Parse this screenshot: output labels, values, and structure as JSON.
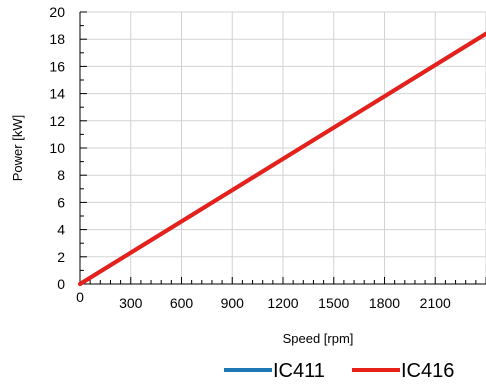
{
  "chart_data": {
    "type": "line",
    "xlabel": "Speed [rpm]",
    "ylabel": "Power [kW]",
    "xlim": [
      0,
      2400
    ],
    "ylim": [
      0,
      20
    ],
    "x_ticks": [
      0,
      300,
      600,
      900,
      1200,
      1500,
      1800,
      2100
    ],
    "y_ticks": [
      0,
      2,
      4,
      6,
      8,
      10,
      12,
      14,
      16,
      18,
      20
    ],
    "x_grid": [
      300,
      600,
      900,
      1200,
      1500,
      1800,
      2100,
      2400
    ],
    "y_grid": [
      0,
      2,
      4,
      6,
      8,
      10,
      12,
      14,
      16,
      18,
      20
    ],
    "grid": true,
    "legend_position": "bottom-right",
    "series": [
      {
        "name": "IC411",
        "color": "#1f77b4",
        "x": [
          0,
          2400
        ],
        "y": [
          0,
          18.4
        ]
      },
      {
        "name": "IC416",
        "color": "#e8201a",
        "x": [
          0,
          2400
        ],
        "y": [
          0,
          18.4
        ]
      }
    ]
  }
}
